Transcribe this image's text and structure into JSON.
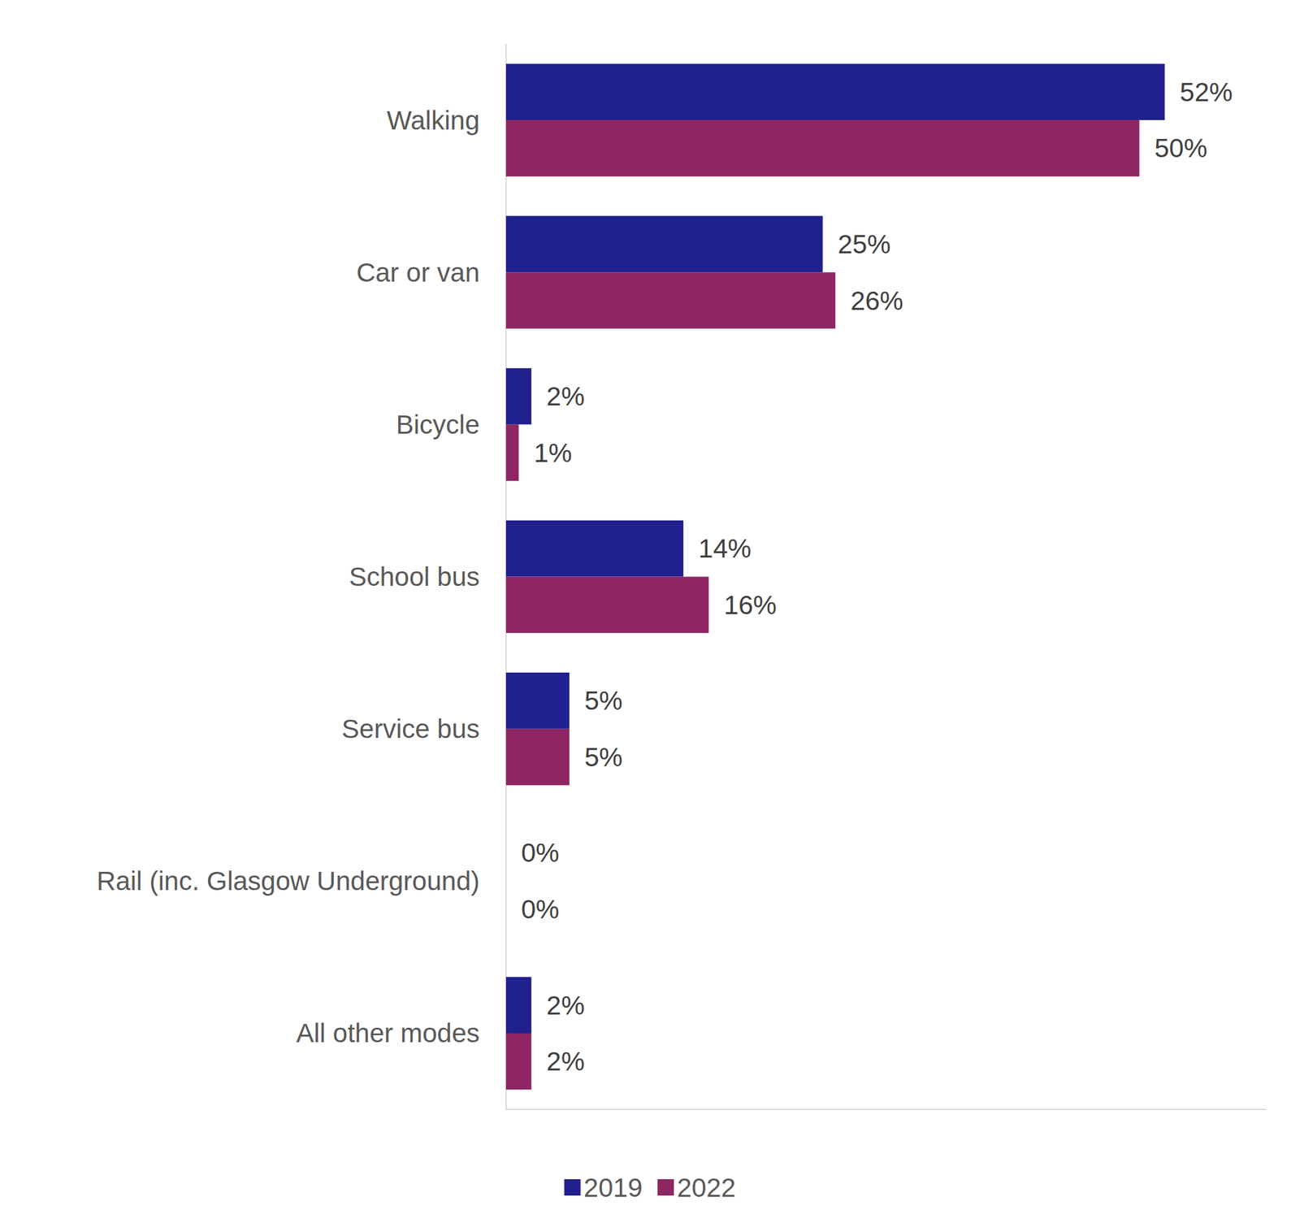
{
  "chart_data": {
    "type": "bar",
    "orientation": "horizontal",
    "categories": [
      "Walking",
      "Car or van",
      "Bicycle",
      "School bus",
      "Service bus",
      "Rail (inc. Glasgow Underground)",
      "All other modes"
    ],
    "series": [
      {
        "name": "2019",
        "color": "#20208f",
        "values": [
          52,
          25,
          2,
          14,
          5,
          0,
          2
        ],
        "value_labels": [
          "52%",
          "25%",
          "2%",
          "14%",
          "5%",
          "0%",
          "2%"
        ]
      },
      {
        "name": "2022",
        "color": "#8e2663",
        "values": [
          50,
          26,
          1,
          16,
          5,
          0,
          2
        ],
        "value_labels": [
          "50%",
          "26%",
          "1%",
          "16%",
          "5%",
          "0%",
          "2%"
        ]
      }
    ],
    "xlim": [
      0,
      60
    ],
    "grid": false,
    "legend": "bottom",
    "data_labels": true,
    "tick_labels": "y"
  }
}
